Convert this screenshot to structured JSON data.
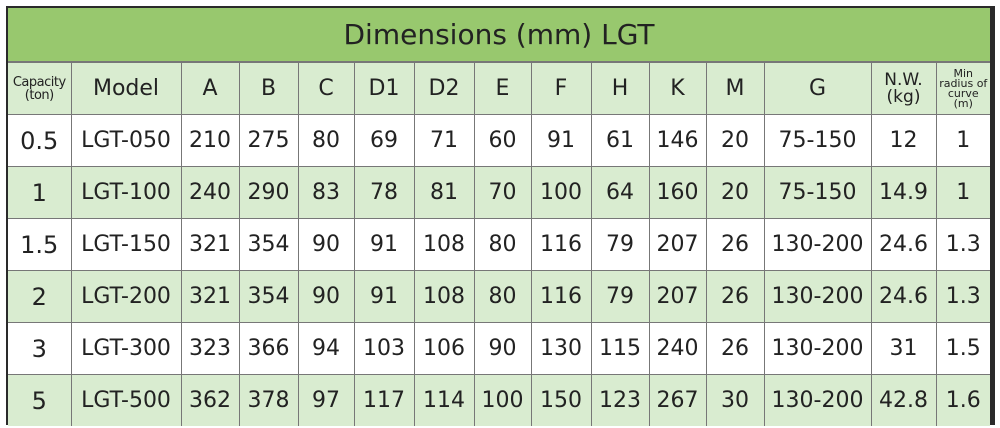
{
  "title": "Dimensions (mm) LGT",
  "colors": {
    "title_bg": "#98c86e",
    "alt_row_bg": "#d9ecd0",
    "border": "#2a2a2a"
  },
  "headers": [
    "Capacity (ton)",
    "Model",
    "A",
    "B",
    "C",
    "D1",
    "D2",
    "E",
    "F",
    "H",
    "K",
    "M",
    "G",
    "N.W. (kg)",
    "Min radius of curve (m)"
  ],
  "rows": [
    [
      "0.5",
      "LGT-050",
      "210",
      "275",
      "80",
      "69",
      "71",
      "60",
      "91",
      "61",
      "146",
      "20",
      "75-150",
      "12",
      "1"
    ],
    [
      "1",
      "LGT-100",
      "240",
      "290",
      "83",
      "78",
      "81",
      "70",
      "100",
      "64",
      "160",
      "20",
      "75-150",
      "14.9",
      "1"
    ],
    [
      "1.5",
      "LGT-150",
      "321",
      "354",
      "90",
      "91",
      "108",
      "80",
      "116",
      "79",
      "207",
      "26",
      "130-200",
      "24.6",
      "1.3"
    ],
    [
      "2",
      "LGT-200",
      "321",
      "354",
      "90",
      "91",
      "108",
      "80",
      "116",
      "79",
      "207",
      "26",
      "130-200",
      "24.6",
      "1.3"
    ],
    [
      "3",
      "LGT-300",
      "323",
      "366",
      "94",
      "103",
      "106",
      "90",
      "130",
      "115",
      "240",
      "26",
      "130-200",
      "31",
      "1.5"
    ],
    [
      "5",
      "LGT-500",
      "362",
      "378",
      "97",
      "117",
      "114",
      "100",
      "150",
      "123",
      "267",
      "30",
      "130-200",
      "42.8",
      "1.6"
    ]
  ]
}
